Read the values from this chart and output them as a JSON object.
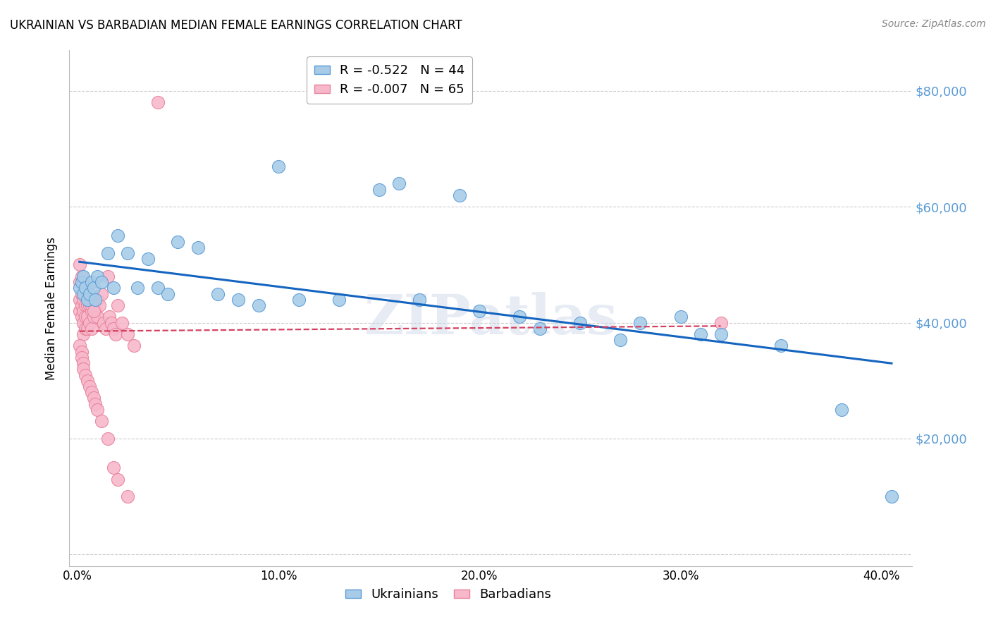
{
  "title": "UKRAINIAN VS BARBADIAN MEDIAN FEMALE EARNINGS CORRELATION CHART",
  "source": "Source: ZipAtlas.com",
  "ylabel": "Median Female Earnings",
  "ylabel_ticks": [
    0,
    20000,
    40000,
    60000,
    80000
  ],
  "ylabel_labels": [
    "",
    "$20,000",
    "$40,000",
    "$60,000",
    "$80,000"
  ],
  "xlabel_ticks": [
    0.0,
    0.1,
    0.2,
    0.3,
    0.4
  ],
  "xlabel_labels": [
    "0.0%",
    "10.0%",
    "20.0%",
    "30.0%",
    "40.0%"
  ],
  "ylim": [
    -2000,
    87000
  ],
  "xlim": [
    -0.004,
    0.415
  ],
  "ukrainian_color": "#a8cce8",
  "barbadian_color": "#f7b8cb",
  "ukrainian_edge": "#5b9bd5",
  "barbadian_edge": "#e8829a",
  "trend_blue": "#1565c0",
  "trend_pink": "#d44060",
  "legend_r_ukrainian": "R = -0.522",
  "legend_n_ukrainian": "N = 44",
  "legend_r_barbadian": "R = -0.007",
  "legend_n_barbadian": "N = 65",
  "watermark": "ZIPatlas",
  "background_color": "#ffffff",
  "grid_color": "#cccccc",
  "tick_color": "#5b9bd5",
  "ukrainians_x": [
    0.001,
    0.002,
    0.003,
    0.003,
    0.004,
    0.005,
    0.006,
    0.007,
    0.008,
    0.009,
    0.01,
    0.012,
    0.015,
    0.018,
    0.02,
    0.025,
    0.03,
    0.035,
    0.04,
    0.045,
    0.05,
    0.06,
    0.07,
    0.08,
    0.09,
    0.1,
    0.11,
    0.13,
    0.16,
    0.19,
    0.22,
    0.25,
    0.28,
    0.3,
    0.32,
    0.15,
    0.17,
    0.2,
    0.23,
    0.27,
    0.31,
    0.35,
    0.38,
    0.405
  ],
  "ukrainians_y": [
    46000,
    47000,
    48000,
    45000,
    46000,
    44000,
    45000,
    47000,
    46000,
    44000,
    48000,
    47000,
    52000,
    46000,
    55000,
    52000,
    46000,
    51000,
    46000,
    45000,
    54000,
    53000,
    45000,
    44000,
    43000,
    67000,
    44000,
    44000,
    64000,
    62000,
    41000,
    40000,
    40000,
    41000,
    38000,
    63000,
    44000,
    42000,
    39000,
    37000,
    38000,
    36000,
    25000,
    10000
  ],
  "barbadians_x": [
    0.001,
    0.001,
    0.001,
    0.002,
    0.002,
    0.002,
    0.003,
    0.003,
    0.003,
    0.003,
    0.004,
    0.004,
    0.004,
    0.005,
    0.005,
    0.005,
    0.006,
    0.006,
    0.007,
    0.007,
    0.008,
    0.008,
    0.009,
    0.01,
    0.01,
    0.011,
    0.012,
    0.013,
    0.014,
    0.015,
    0.016,
    0.017,
    0.018,
    0.019,
    0.02,
    0.022,
    0.025,
    0.028,
    0.001,
    0.002,
    0.003,
    0.004,
    0.005,
    0.006,
    0.007,
    0.008,
    0.001,
    0.002,
    0.002,
    0.003,
    0.003,
    0.004,
    0.005,
    0.006,
    0.007,
    0.008,
    0.009,
    0.01,
    0.012,
    0.015,
    0.018,
    0.02,
    0.025,
    0.04,
    0.32
  ],
  "barbadians_y": [
    47000,
    44000,
    42000,
    45000,
    43000,
    41000,
    44000,
    42000,
    40000,
    38000,
    43000,
    41000,
    39000,
    43000,
    41000,
    39000,
    43000,
    40000,
    42000,
    39000,
    43000,
    41000,
    42000,
    44000,
    41000,
    43000,
    45000,
    40000,
    39000,
    48000,
    41000,
    40000,
    39000,
    38000,
    43000,
    40000,
    38000,
    36000,
    50000,
    48000,
    47000,
    46000,
    45000,
    44000,
    43000,
    42000,
    36000,
    35000,
    34000,
    33000,
    32000,
    31000,
    30000,
    29000,
    28000,
    27000,
    26000,
    25000,
    23000,
    20000,
    15000,
    13000,
    10000,
    78000,
    40000
  ]
}
